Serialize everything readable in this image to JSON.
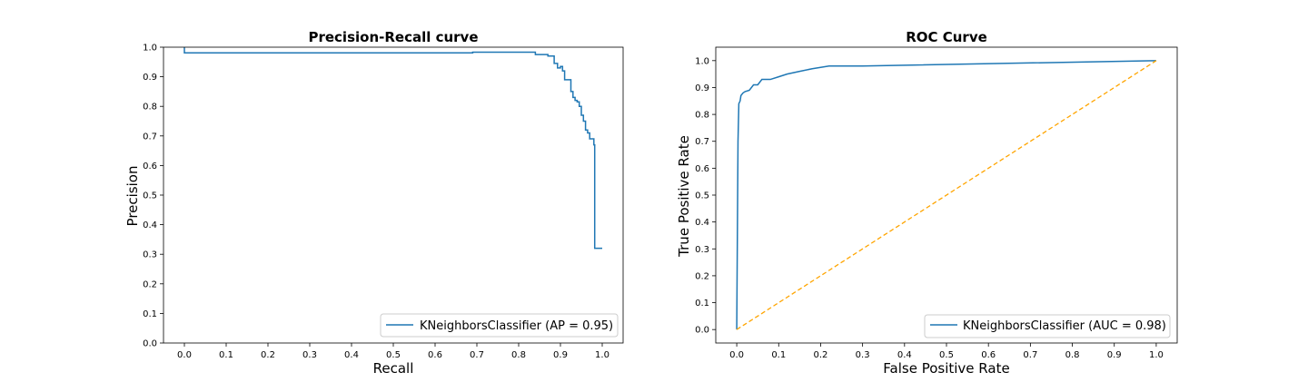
{
  "colors": {
    "series": "#1f77b4",
    "diagonal": "#ffa500",
    "axes": "#000000",
    "legend_border": "#cccccc"
  },
  "chart_data": [
    {
      "type": "line",
      "title": "Precision-Recall curve",
      "xlabel": "Recall",
      "ylabel": "Precision",
      "xlim": [
        -0.05,
        1.05
      ],
      "ylim": [
        0.0,
        1.0
      ],
      "xticks": [
        "0.0",
        "0.1",
        "0.2",
        "0.3",
        "0.4",
        "0.5",
        "0.6",
        "0.7",
        "0.8",
        "0.9",
        "1.0"
      ],
      "yticks": [
        "0.0",
        "0.1",
        "0.2",
        "0.3",
        "0.4",
        "0.5",
        "0.6",
        "0.7",
        "0.8",
        "0.9",
        "1.0"
      ],
      "grid": false,
      "legend": "lower right",
      "series": [
        {
          "name": "KNeighborsClassifier (AP = 0.95)",
          "step": true,
          "points": [
            [
              0.0,
              1.0
            ],
            [
              0.0,
              0.981
            ],
            [
              0.69,
              0.981
            ],
            [
              0.69,
              0.983
            ],
            [
              0.84,
              0.983
            ],
            [
              0.84,
              0.975
            ],
            [
              0.87,
              0.975
            ],
            [
              0.87,
              0.97
            ],
            [
              0.885,
              0.97
            ],
            [
              0.885,
              0.945
            ],
            [
              0.893,
              0.945
            ],
            [
              0.893,
              0.93
            ],
            [
              0.9,
              0.93
            ],
            [
              0.9,
              0.935
            ],
            [
              0.905,
              0.935
            ],
            [
              0.905,
              0.92
            ],
            [
              0.91,
              0.92
            ],
            [
              0.91,
              0.89
            ],
            [
              0.925,
              0.89
            ],
            [
              0.925,
              0.85
            ],
            [
              0.93,
              0.85
            ],
            [
              0.93,
              0.83
            ],
            [
              0.935,
              0.83
            ],
            [
              0.935,
              0.82
            ],
            [
              0.94,
              0.82
            ],
            [
              0.94,
              0.815
            ],
            [
              0.945,
              0.815
            ],
            [
              0.945,
              0.8
            ],
            [
              0.95,
              0.8
            ],
            [
              0.95,
              0.77
            ],
            [
              0.955,
              0.77
            ],
            [
              0.955,
              0.75
            ],
            [
              0.96,
              0.75
            ],
            [
              0.96,
              0.72
            ],
            [
              0.965,
              0.72
            ],
            [
              0.965,
              0.71
            ],
            [
              0.97,
              0.71
            ],
            [
              0.97,
              0.69
            ],
            [
              0.98,
              0.69
            ],
            [
              0.98,
              0.67
            ],
            [
              0.982,
              0.67
            ],
            [
              0.982,
              0.32
            ],
            [
              1.0,
              0.32
            ]
          ]
        }
      ]
    },
    {
      "type": "line",
      "title": "ROC Curve",
      "xlabel": "False Positive Rate",
      "ylabel": "True Positive Rate",
      "xlim": [
        -0.05,
        1.05
      ],
      "ylim": [
        -0.05,
        1.05
      ],
      "xticks": [
        "0.0",
        "0.1",
        "0.2",
        "0.3",
        "0.4",
        "0.5",
        "0.6",
        "0.7",
        "0.8",
        "0.9",
        "1.0"
      ],
      "yticks": [
        "0.0",
        "0.1",
        "0.2",
        "0.3",
        "0.4",
        "0.5",
        "0.6",
        "0.7",
        "0.8",
        "0.9",
        "1.0"
      ],
      "grid": false,
      "legend": "lower right",
      "series": [
        {
          "name": "KNeighborsClassifier (AUC = 0.98)",
          "points": [
            [
              0.0,
              0.0
            ],
            [
              0.003,
              0.7
            ],
            [
              0.005,
              0.84
            ],
            [
              0.008,
              0.85
            ],
            [
              0.01,
              0.87
            ],
            [
              0.015,
              0.88
            ],
            [
              0.02,
              0.885
            ],
            [
              0.03,
              0.89
            ],
            [
              0.04,
              0.91
            ],
            [
              0.05,
              0.91
            ],
            [
              0.06,
              0.93
            ],
            [
              0.08,
              0.93
            ],
            [
              0.1,
              0.94
            ],
            [
              0.12,
              0.95
            ],
            [
              0.15,
              0.96
            ],
            [
              0.18,
              0.97
            ],
            [
              0.2,
              0.975
            ],
            [
              0.22,
              0.98
            ],
            [
              0.3,
              0.98
            ],
            [
              1.0,
              1.0
            ]
          ]
        },
        {
          "name": "",
          "dashed": true,
          "points": [
            [
              0.0,
              0.0
            ],
            [
              1.0,
              1.0
            ]
          ]
        }
      ]
    }
  ]
}
